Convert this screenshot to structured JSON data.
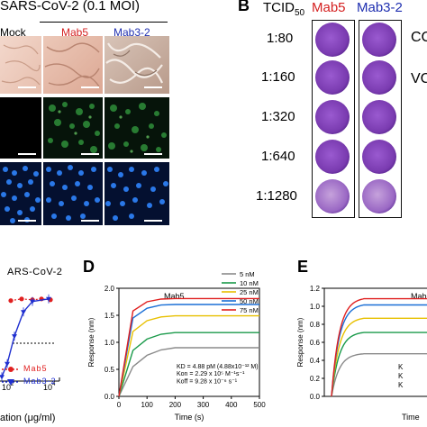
{
  "panel_a": {
    "header": "SARS-CoV-2  (0.1  MOI)",
    "col_labels": [
      "Mock",
      "Mab5",
      "Mab3-2"
    ],
    "col_colors": [
      "#000000",
      "#d42020",
      "#1f2fb0"
    ]
  },
  "panel_b": {
    "letter": "B",
    "tcid_main": "TCID",
    "tcid_sub": "50",
    "col_labels": [
      "Mab5",
      "Mab3-2"
    ],
    "col_colors": [
      "#d42020",
      "#1f2fb0"
    ],
    "dilutions": [
      "1:80",
      "1:160",
      "1:320",
      "1:640",
      "1:1280"
    ],
    "side_text": [
      "CC",
      "VC"
    ]
  },
  "panel_c": {
    "title": "ARS-CoV-2",
    "xlabel": "ation (μg/ml)",
    "xticks": [
      "10",
      "2",
      "10",
      "4"
    ],
    "legend": [
      "Mab5",
      "Mab3-2"
    ],
    "series_colors": [
      "#e02020",
      "#1f2fd0"
    ]
  },
  "panel_d": {
    "letter": "D",
    "title": "Mab5",
    "xlabel": "Time (s)",
    "ylabel": "Response (nm)",
    "xticks": [
      "0",
      "100",
      "200",
      "300",
      "400",
      "500"
    ],
    "yticks": [
      "0.0",
      "0.5",
      "1.0",
      "1.5",
      "2.0"
    ],
    "legend": [
      "5 nM",
      "10 nM",
      "25 nM",
      "50 nM",
      "75 nM"
    ],
    "kd": "KD = 4.88 pM (4.88x10⁻¹² M)",
    "kon": "Kon = 2.29 x 10⁵ M⁻¹s⁻¹",
    "koff": "Koff = 9.28 x 10⁻⁶ s⁻¹"
  },
  "panel_e": {
    "letter": "E",
    "title": "Mab",
    "xlabel": "Time",
    "ylabel": "Response (nm)",
    "yticks": [
      "0.0",
      "0.2",
      "0.4",
      "0.6",
      "0.8",
      "1.0",
      "1.2"
    ],
    "k_labels": [
      "K",
      "K",
      "K"
    ]
  },
  "chart_data": [
    {
      "type": "line",
      "title": "Mab5",
      "xlabel": "Time (s)",
      "ylabel": "Response (nm)",
      "xlim": [
        0,
        500
      ],
      "ylim": [
        0,
        2.0
      ],
      "series": [
        {
          "name": "5 nM",
          "color": "#8a8a8a",
          "plateau": 0.9,
          "points": [
            [
              0,
              0
            ],
            [
              50,
              0.55
            ],
            [
              100,
              0.76
            ],
            [
              150,
              0.86
            ],
            [
              200,
              0.9
            ],
            [
              250,
              0.9
            ],
            [
              300,
              0.9
            ],
            [
              400,
              0.9
            ],
            [
              500,
              0.9
            ]
          ]
        },
        {
          "name": "10 nM",
          "color": "#1a9a4a",
          "plateau": 1.18,
          "points": [
            [
              0,
              0
            ],
            [
              50,
              0.85
            ],
            [
              100,
              1.06
            ],
            [
              150,
              1.15
            ],
            [
              200,
              1.18
            ],
            [
              250,
              1.18
            ],
            [
              300,
              1.18
            ],
            [
              400,
              1.18
            ],
            [
              500,
              1.18
            ]
          ]
        },
        {
          "name": "25 nM",
          "color": "#e8c000",
          "plateau": 1.49,
          "points": [
            [
              0,
              0
            ],
            [
              50,
              1.2
            ],
            [
              100,
              1.4
            ],
            [
              150,
              1.47
            ],
            [
              200,
              1.49
            ],
            [
              250,
              1.49
            ],
            [
              300,
              1.49
            ],
            [
              400,
              1.49
            ],
            [
              500,
              1.49
            ]
          ]
        },
        {
          "name": "50 nM",
          "color": "#1a6fd6",
          "plateau": 1.7,
          "points": [
            [
              0,
              0
            ],
            [
              50,
              1.45
            ],
            [
              100,
              1.63
            ],
            [
              150,
              1.69
            ],
            [
              200,
              1.7
            ],
            [
              250,
              1.7
            ],
            [
              300,
              1.7
            ],
            [
              400,
              1.7
            ],
            [
              500,
              1.7
            ]
          ]
        },
        {
          "name": "75 nM",
          "color": "#e02020",
          "plateau": 1.81,
          "points": [
            [
              0,
              0
            ],
            [
              50,
              1.58
            ],
            [
              100,
              1.75
            ],
            [
              150,
              1.8
            ],
            [
              200,
              1.81
            ],
            [
              250,
              1.81
            ],
            [
              300,
              1.81
            ],
            [
              400,
              1.81
            ],
            [
              500,
              1.81
            ]
          ]
        }
      ]
    },
    {
      "type": "line",
      "title": "Mab",
      "xlabel": "Time",
      "ylabel": "Response (nm)",
      "ylim": [
        0,
        1.2
      ],
      "series": [
        {
          "color": "#8a8a8a",
          "plateau": 0.48
        },
        {
          "color": "#1a9a4a",
          "plateau": 0.72
        },
        {
          "color": "#e8c000",
          "plateau": 0.88
        },
        {
          "color": "#1a6fd6",
          "plateau": 1.03
        },
        {
          "color": "#e02020",
          "plateau": 1.1
        }
      ]
    },
    {
      "type": "scatter",
      "title": "ARS-CoV-2",
      "series": [
        {
          "name": "Mab5",
          "color": "#e02020",
          "marker": "circle",
          "y": [
            93,
            95,
            94,
            95,
            94
          ]
        },
        {
          "name": "Mab3-2",
          "color": "#1f2fd0",
          "marker": "triangle",
          "y": [
            5,
            20,
            52,
            80,
            92,
            95
          ]
        }
      ]
    }
  ]
}
